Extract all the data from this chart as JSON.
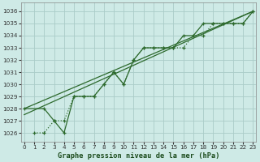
{
  "title": "Graphe pression niveau de la mer (hPa)",
  "background_color": "#ceeae6",
  "grid_color": "#aaccc8",
  "line_color": "#2d6a2d",
  "series": [
    {
      "x": [
        0,
        2,
        3,
        4,
        5,
        6,
        7,
        8,
        9,
        10,
        11,
        12,
        13,
        14,
        15,
        16,
        17,
        18,
        19,
        20,
        21,
        22,
        23
      ],
      "y": [
        1028,
        1028,
        1027,
        1026,
        1029,
        1029,
        1029,
        1030,
        1031,
        1030,
        1032,
        1033,
        1033,
        1033,
        1033,
        1034,
        1034,
        1035,
        1035,
        1035,
        1035,
        1035,
        1036
      ],
      "linestyle": "-",
      "marker": "+",
      "markersize": 3.5,
      "linewidth": 0.9
    },
    {
      "x": [
        0,
        23
      ],
      "y": [
        1028,
        1036
      ],
      "linestyle": "-",
      "marker": null,
      "markersize": 0,
      "linewidth": 0.9
    },
    {
      "x": [
        0,
        23
      ],
      "y": [
        1027.5,
        1036
      ],
      "linestyle": "-",
      "marker": null,
      "markersize": 0,
      "linewidth": 0.9
    },
    {
      "x": [
        1,
        2,
        3,
        4,
        5,
        6,
        7,
        8,
        9,
        10,
        11,
        12,
        13,
        14,
        15,
        16,
        17,
        18,
        19,
        20,
        21,
        22,
        23
      ],
      "y": [
        1026,
        1026,
        1027,
        1027,
        1029,
        1029,
        1029,
        1030,
        1031,
        1030,
        1032,
        1033,
        1033,
        1033,
        1033,
        1033,
        1034,
        1034,
        1035,
        1035,
        1035,
        1035,
        1036
      ],
      "linestyle": ":",
      "marker": "+",
      "markersize": 3.5,
      "linewidth": 0.9
    }
  ],
  "xlim": [
    -0.3,
    23.3
  ],
  "ylim": [
    1025.3,
    1036.7
  ],
  "yticks": [
    1026,
    1027,
    1028,
    1029,
    1030,
    1031,
    1032,
    1033,
    1034,
    1035,
    1036
  ],
  "xticks": [
    0,
    1,
    2,
    3,
    4,
    5,
    6,
    7,
    8,
    9,
    10,
    11,
    12,
    13,
    14,
    15,
    16,
    17,
    18,
    19,
    20,
    21,
    22,
    23
  ],
  "tick_fontsize": 5.2,
  "xlabel_fontsize": 6.2
}
